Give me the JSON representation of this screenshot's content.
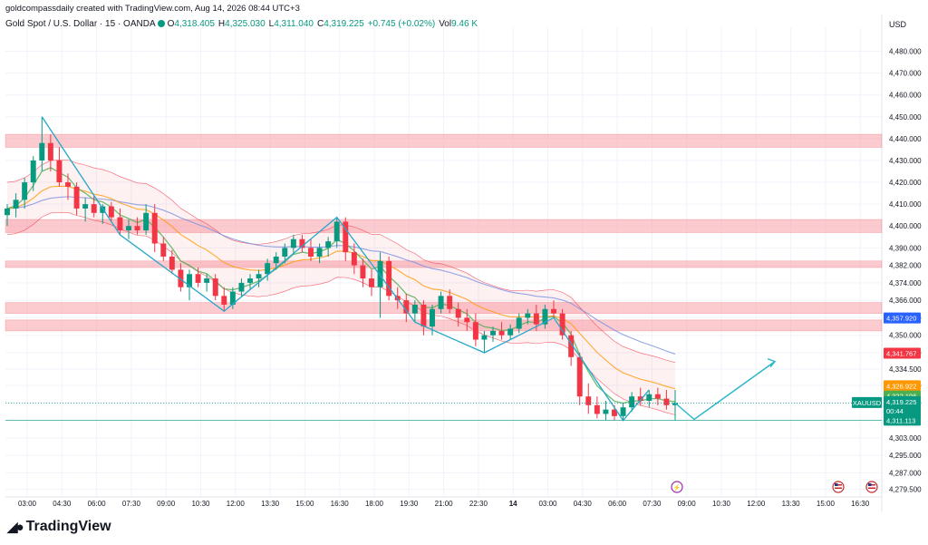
{
  "header": {
    "attribution": "goldcompassdaily created with TradingView.com, Aug 14, 2026 08:44 UTC+3"
  },
  "legend": {
    "symbol": "Gold Spot / U.S. Dollar · 15 · OANDA",
    "o_label": "O",
    "o": "4,318.405",
    "h_label": "H",
    "h": "4,325.030",
    "l_label": "L",
    "l": "4,311.040",
    "c_label": "C",
    "c": "4,319.225",
    "change": "+0.745 (+0.02%)",
    "vol_label": "Vol",
    "vol": "9.46 K"
  },
  "price_axis": {
    "currency": "USD"
  },
  "footer": {
    "brand": "TradingView"
  },
  "colors": {
    "up": "#089981",
    "down": "#f23645",
    "zone": "#f7a1a8",
    "ema_fast": "#4caf50",
    "ema_slow": "#ff9800",
    "ma_long": "#7b8fe0",
    "projection": "#26b6c9",
    "zigzag": "#26a7c9"
  },
  "chart_data": {
    "type": "candlestick",
    "ylim": [
      4276,
      4491
    ],
    "y_ticks": [
      4279.5,
      4287,
      4295,
      4303,
      4311,
      4319,
      4327,
      4334.5,
      4342,
      4350,
      4358,
      4366,
      4374,
      4382,
      4390,
      4400,
      4410,
      4420,
      4430,
      4440,
      4450,
      4460,
      4470,
      4480
    ],
    "y_tick_labels": [
      "4,279.500",
      "4,287.000",
      "4,295.000",
      "4,303.000",
      "4,311.000",
      "4,319.000",
      "4,327.000",
      "4,334.500",
      "4,342.000",
      "4,350.000",
      "4,358.000",
      "4,366.000",
      "4,374.000",
      "4,382.000",
      "4,390.000",
      "4,400.000",
      "4,410.000",
      "4,420.000",
      "4,430.000",
      "4,440.000",
      "4,450.000",
      "4,460.000",
      "4,470.000",
      "4,480.000"
    ],
    "x_ticks": [
      "03:00",
      "04:30",
      "06:00",
      "07:30",
      "09:00",
      "10:30",
      "12:00",
      "13:30",
      "15:00",
      "16:30",
      "18:00",
      "19:30",
      "21:00",
      "22:30",
      "14",
      "03:00",
      "04:30",
      "06:00",
      "07:30",
      "09:00",
      "10:30",
      "12:00",
      "13:30",
      "15:00",
      "16:30"
    ],
    "candles": [
      {
        "o": 4405,
        "h": 4410,
        "l": 4400,
        "c": 4408
      },
      {
        "o": 4408,
        "h": 4415,
        "l": 4404,
        "c": 4412
      },
      {
        "o": 4412,
        "h": 4422,
        "l": 4408,
        "c": 4420
      },
      {
        "o": 4420,
        "h": 4432,
        "l": 4416,
        "c": 4430
      },
      {
        "o": 4430,
        "h": 4450,
        "l": 4425,
        "c": 4438
      },
      {
        "o": 4438,
        "h": 4442,
        "l": 4425,
        "c": 4430
      },
      {
        "o": 4430,
        "h": 4436,
        "l": 4418,
        "c": 4420
      },
      {
        "o": 4420,
        "h": 4424,
        "l": 4412,
        "c": 4418
      },
      {
        "o": 4418,
        "h": 4420,
        "l": 4405,
        "c": 4408
      },
      {
        "o": 4408,
        "h": 4413,
        "l": 4402,
        "c": 4410
      },
      {
        "o": 4410,
        "h": 4414,
        "l": 4404,
        "c": 4406
      },
      {
        "o": 4406,
        "h": 4410,
        "l": 4401,
        "c": 4409
      },
      {
        "o": 4409,
        "h": 4411,
        "l": 4402,
        "c": 4404
      },
      {
        "o": 4404,
        "h": 4408,
        "l": 4396,
        "c": 4398
      },
      {
        "o": 4398,
        "h": 4403,
        "l": 4394,
        "c": 4400
      },
      {
        "o": 4400,
        "h": 4404,
        "l": 4396,
        "c": 4398
      },
      {
        "o": 4398,
        "h": 4410,
        "l": 4396,
        "c": 4406
      },
      {
        "o": 4406,
        "h": 4410,
        "l": 4388,
        "c": 4392
      },
      {
        "o": 4392,
        "h": 4395,
        "l": 4384,
        "c": 4386
      },
      {
        "o": 4386,
        "h": 4389,
        "l": 4378,
        "c": 4380
      },
      {
        "o": 4380,
        "h": 4383,
        "l": 4370,
        "c": 4372
      },
      {
        "o": 4372,
        "h": 4380,
        "l": 4366,
        "c": 4378
      },
      {
        "o": 4378,
        "h": 4381,
        "l": 4372,
        "c": 4374
      },
      {
        "o": 4374,
        "h": 4378,
        "l": 4370,
        "c": 4376
      },
      {
        "o": 4376,
        "h": 4378,
        "l": 4366,
        "c": 4368
      },
      {
        "o": 4368,
        "h": 4372,
        "l": 4361,
        "c": 4364
      },
      {
        "o": 4364,
        "h": 4372,
        "l": 4362,
        "c": 4370
      },
      {
        "o": 4370,
        "h": 4376,
        "l": 4368,
        "c": 4374
      },
      {
        "o": 4374,
        "h": 4378,
        "l": 4371,
        "c": 4376
      },
      {
        "o": 4376,
        "h": 4380,
        "l": 4372,
        "c": 4378
      },
      {
        "o": 4378,
        "h": 4385,
        "l": 4375,
        "c": 4383
      },
      {
        "o": 4383,
        "h": 4388,
        "l": 4380,
        "c": 4386
      },
      {
        "o": 4386,
        "h": 4392,
        "l": 4383,
        "c": 4390
      },
      {
        "o": 4390,
        "h": 4396,
        "l": 4387,
        "c": 4394
      },
      {
        "o": 4394,
        "h": 4396,
        "l": 4388,
        "c": 4390
      },
      {
        "o": 4390,
        "h": 4394,
        "l": 4384,
        "c": 4386
      },
      {
        "o": 4386,
        "h": 4392,
        "l": 4383,
        "c": 4390
      },
      {
        "o": 4390,
        "h": 4395,
        "l": 4386,
        "c": 4393
      },
      {
        "o": 4393,
        "h": 4404,
        "l": 4390,
        "c": 4402
      },
      {
        "o": 4402,
        "h": 4404,
        "l": 4384,
        "c": 4388
      },
      {
        "o": 4388,
        "h": 4392,
        "l": 4378,
        "c": 4382
      },
      {
        "o": 4382,
        "h": 4385,
        "l": 4372,
        "c": 4376
      },
      {
        "o": 4376,
        "h": 4380,
        "l": 4368,
        "c": 4372
      },
      {
        "o": 4372,
        "h": 4388,
        "l": 4358,
        "c": 4384
      },
      {
        "o": 4384,
        "h": 4386,
        "l": 4366,
        "c": 4368
      },
      {
        "o": 4368,
        "h": 4372,
        "l": 4362,
        "c": 4366
      },
      {
        "o": 4366,
        "h": 4369,
        "l": 4356,
        "c": 4360
      },
      {
        "o": 4360,
        "h": 4366,
        "l": 4356,
        "c": 4364
      },
      {
        "o": 4364,
        "h": 4366,
        "l": 4350,
        "c": 4354
      },
      {
        "o": 4354,
        "h": 4364,
        "l": 4350,
        "c": 4362
      },
      {
        "o": 4362,
        "h": 4370,
        "l": 4360,
        "c": 4368
      },
      {
        "o": 4368,
        "h": 4371,
        "l": 4360,
        "c": 4362
      },
      {
        "o": 4362,
        "h": 4365,
        "l": 4354,
        "c": 4358
      },
      {
        "o": 4358,
        "h": 4362,
        "l": 4352,
        "c": 4356
      },
      {
        "o": 4356,
        "h": 4360,
        "l": 4345,
        "c": 4348
      },
      {
        "o": 4348,
        "h": 4352,
        "l": 4342,
        "c": 4350
      },
      {
        "o": 4350,
        "h": 4354,
        "l": 4347,
        "c": 4352
      },
      {
        "o": 4352,
        "h": 4356,
        "l": 4348,
        "c": 4350
      },
      {
        "o": 4350,
        "h": 4355,
        "l": 4348,
        "c": 4353
      },
      {
        "o": 4353,
        "h": 4360,
        "l": 4351,
        "c": 4358
      },
      {
        "o": 4358,
        "h": 4362,
        "l": 4355,
        "c": 4360
      },
      {
        "o": 4360,
        "h": 4364,
        "l": 4352,
        "c": 4355
      },
      {
        "o": 4355,
        "h": 4364,
        "l": 4353,
        "c": 4362
      },
      {
        "o": 4362,
        "h": 4366,
        "l": 4358,
        "c": 4360
      },
      {
        "o": 4360,
        "h": 4362,
        "l": 4348,
        "c": 4350
      },
      {
        "o": 4350,
        "h": 4352,
        "l": 4336,
        "c": 4340
      },
      {
        "o": 4340,
        "h": 4342,
        "l": 4318,
        "c": 4322
      },
      {
        "o": 4322,
        "h": 4328,
        "l": 4314,
        "c": 4318
      },
      {
        "o": 4318,
        "h": 4322,
        "l": 4312,
        "c": 4314
      },
      {
        "o": 4314,
        "h": 4320,
        "l": 4311,
        "c": 4316
      },
      {
        "o": 4316,
        "h": 4318,
        "l": 4311,
        "c": 4313
      },
      {
        "o": 4313,
        "h": 4319,
        "l": 4311,
        "c": 4317
      },
      {
        "o": 4317,
        "h": 4324,
        "l": 4315,
        "c": 4322
      },
      {
        "o": 4322,
        "h": 4326,
        "l": 4318,
        "c": 4320
      },
      {
        "o": 4320,
        "h": 4325,
        "l": 4317,
        "c": 4323
      },
      {
        "o": 4323,
        "h": 4326,
        "l": 4318,
        "c": 4321
      },
      {
        "o": 4321,
        "h": 4325,
        "l": 4316,
        "c": 4318
      },
      {
        "o": 4318,
        "h": 4325,
        "l": 4311,
        "c": 4319
      }
    ],
    "resistance_zones": [
      [
        4436,
        4442
      ],
      [
        4397,
        4403
      ],
      [
        4381,
        4384
      ],
      [
        4360,
        4365
      ],
      [
        4352,
        4357
      ]
    ],
    "price_labels": [
      {
        "text": "4,357.920",
        "color": "#2962ff"
      },
      {
        "text": "4,341.767",
        "color": "#f23645"
      },
      {
        "text": "4,326.922",
        "color": "#ff9800"
      },
      {
        "text": "4,322.196",
        "color": "#4caf50"
      },
      {
        "text": "XAUUSD",
        "color": "#089981"
      },
      {
        "text": "4,319.225",
        "color": "#089981"
      },
      {
        "text": "00:44",
        "color": "#089981"
      },
      {
        "text": "4,311.113",
        "color": "#089981"
      }
    ],
    "grid": true
  }
}
